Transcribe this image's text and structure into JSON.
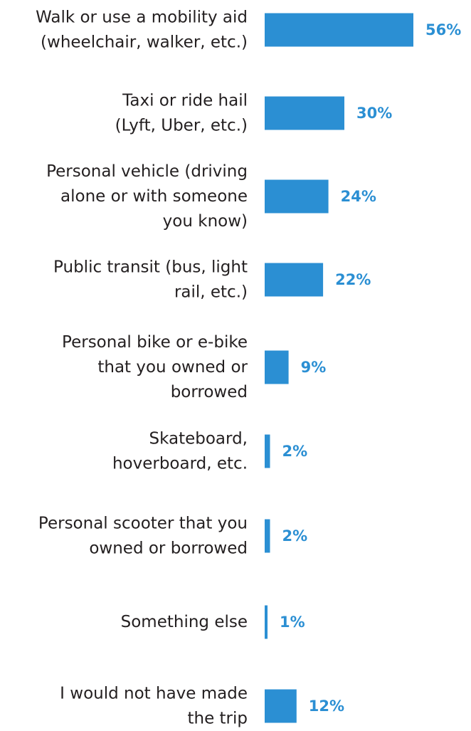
{
  "chart_data": {
    "type": "bar",
    "orientation": "horizontal",
    "categories": [
      [
        "Walk or use a mobility aid",
        "(wheelchair, walker, etc.)"
      ],
      [
        "Taxi or ride hail",
        "(Lyft, Uber, etc.)"
      ],
      [
        "Personal vehicle (driving",
        "alone or with someone",
        "you know)"
      ],
      [
        "Public transit (bus, light",
        "rail, etc.)"
      ],
      [
        "Personal bike or e-bike",
        "that you owned or",
        "borrowed"
      ],
      [
        "Skateboard,",
        "hoverboard, etc."
      ],
      [
        "Personal scooter that you",
        "owned or borrowed"
      ],
      [
        "Something else"
      ],
      [
        "I would not have made",
        "the trip"
      ]
    ],
    "values": [
      56,
      30,
      24,
      22,
      9,
      2,
      2,
      1,
      12
    ],
    "value_labels": [
      "56%",
      "30%",
      "24%",
      "22%",
      "9%",
      "2%",
      "2%",
      "1%",
      "12%"
    ],
    "xlim": [
      0,
      56
    ],
    "grid": false,
    "legend": "none",
    "colors": {
      "bar": "#2b8fd3",
      "value_text": "#2b8fd3",
      "label_text": "#231f20"
    }
  }
}
